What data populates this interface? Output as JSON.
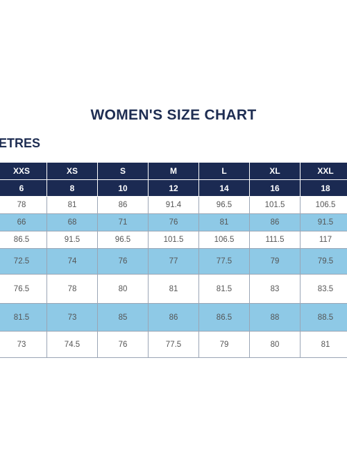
{
  "title": "WOMEN'S SIZE CHART",
  "unit_label": "ETRES",
  "table": {
    "sizes": [
      "XXS",
      "XS",
      "S",
      "M",
      "L",
      "XL",
      "XXL"
    ],
    "size_numbers": [
      "6",
      "8",
      "10",
      "12",
      "14",
      "16",
      "18"
    ],
    "rows": [
      [
        "78",
        "81",
        "86",
        "91.4",
        "96.5",
        "101.5",
        "106.5"
      ],
      [
        "66",
        "68",
        "71",
        "76",
        "81",
        "86",
        "91.5"
      ],
      [
        "86.5",
        "91.5",
        "96.5",
        "101.5",
        "106.5",
        "111.5",
        "117"
      ],
      [
        "72.5",
        "74",
        "76",
        "77",
        "77.5",
        "79",
        "79.5"
      ],
      [
        "76.5",
        "78",
        "80",
        "81",
        "81.5",
        "83",
        "83.5"
      ],
      [
        "81.5",
        "73",
        "85",
        "86",
        "86.5",
        "88",
        "88.5"
      ],
      [
        "73",
        "74.5",
        "76",
        "77.5",
        "79",
        "80",
        "81"
      ]
    ]
  },
  "colors": {
    "navy": "#1b2a52",
    "light_blue": "#8ec9e6"
  }
}
